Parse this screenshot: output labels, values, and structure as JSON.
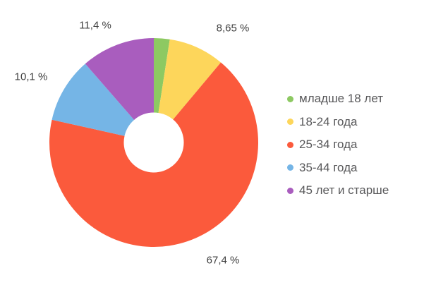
{
  "chart_data": {
    "type": "pie",
    "donut": true,
    "start_angle_deg": 0,
    "direction": "clockwise",
    "legend_position": "right",
    "title": "",
    "slices": [
      {
        "label": "младше 18 лет",
        "value": 2.45,
        "display_label": "",
        "color": "#8DC962"
      },
      {
        "label": "18-24 года",
        "value": 8.65,
        "display_label": "8,65 %",
        "color": "#FDD65B"
      },
      {
        "label": "25-34 года",
        "value": 67.4,
        "display_label": "67,4 %",
        "color": "#FB5A3C"
      },
      {
        "label": "35-44 года",
        "value": 10.1,
        "display_label": "10,1 %",
        "color": "#75B5E6"
      },
      {
        "label": "45 лет и старше",
        "value": 11.4,
        "display_label": "11,4 %",
        "color": "#A95DBE"
      }
    ],
    "label_color": "#404040",
    "legend_text_color": "#58585A",
    "background_color": "#FFFFFF"
  }
}
